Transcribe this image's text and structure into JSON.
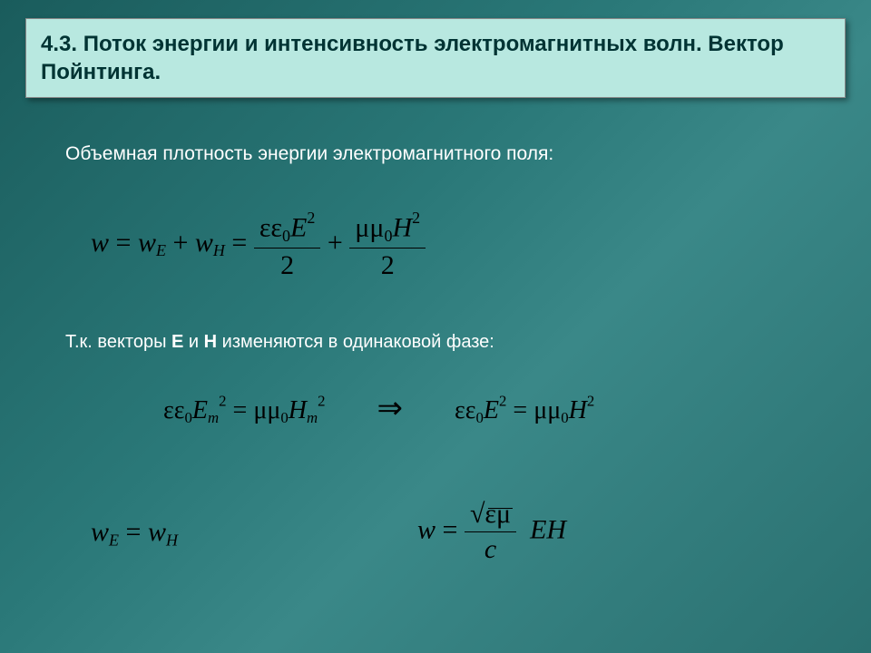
{
  "title": "4.3. Поток энергии и интенсивность электромагнитных волн. Вектор Пойнтинга.",
  "subtitle1": "Объемная плотность энергии электромагнитного поля:",
  "subtitle2_pre": "Т.к. векторы ",
  "subtitle2_e": "E",
  "subtitle2_mid": " и ",
  "subtitle2_h": "H",
  "subtitle2_post": " изменяются в одинаковой фазе:",
  "eq1": {
    "w": "w",
    "eq": " = ",
    "wE": "w",
    "subE": "E",
    "plus": " + ",
    "wH": "w",
    "subH": "H",
    "ee": "εε",
    "zero": "0",
    "E": "E",
    "two": "2",
    "mm": "μμ",
    "H": "H",
    "den": "2"
  },
  "eq2": {
    "ee": "εε",
    "zero": "0",
    "E": "E",
    "m": "m",
    "two": "2",
    "eq": " = ",
    "mm": "μμ",
    "H": "H",
    "arrow": "⇒"
  },
  "eq3": {
    "wE": "w",
    "subE": "E",
    "eq": " = ",
    "wH": "w",
    "subH": "H"
  },
  "eq4": {
    "w": "w",
    "eq": " = ",
    "em": "εμ",
    "c": "c",
    "E": "E",
    "H": "H",
    "sqrt": "√"
  },
  "colors": {
    "titleBg": "#b8e8e0",
    "titleFg": "#003333",
    "bodyText": "#ffffff",
    "eqText": "#000000"
  }
}
